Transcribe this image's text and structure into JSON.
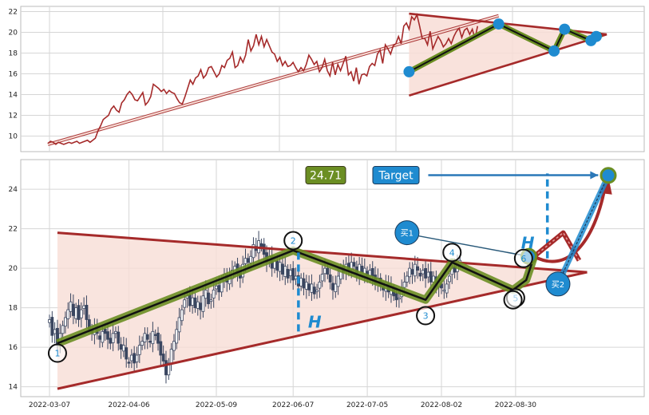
{
  "chart_data": [
    {
      "type": "line",
      "panel": "overview",
      "ylim": [
        8.5,
        22.5
      ],
      "yticks": [
        10,
        12,
        14,
        16,
        18,
        20,
        22
      ],
      "grid": true,
      "colors": {
        "line": "#a52a2a",
        "triangle": "#a52a2a",
        "fill": "#f8ddd6",
        "zigzag_outer": "#6b8e23",
        "zigzag_inner": "#111111",
        "points": "#1f8bd0"
      },
      "series": [
        {
          "values": [
            9.3,
            9.5,
            9.4,
            9.2,
            9.4,
            9.3,
            9.2,
            9.3,
            9.4,
            9.3,
            9.4,
            9.5,
            9.3,
            9.4,
            9.5,
            9.6,
            9.4,
            9.6,
            9.8,
            10.5,
            11.0,
            11.6,
            11.8,
            12.0,
            12.6,
            12.9,
            12.5,
            12.3,
            13.2,
            13.5,
            14.0,
            14.3,
            14.0,
            13.5,
            13.4,
            13.8,
            14.2,
            13.0,
            13.3,
            13.8,
            15.0,
            14.8,
            14.6,
            14.3,
            14.5,
            14.1,
            14.4,
            14.2,
            14.1,
            13.6,
            13.2,
            13.1,
            13.8,
            14.6,
            15.4,
            15.0,
            15.6,
            15.8,
            16.4,
            15.6,
            15.9,
            16.6,
            16.7,
            16.2,
            15.7,
            16.0,
            16.8,
            16.6,
            17.3,
            17.5,
            18.1,
            16.6,
            16.8,
            17.6,
            17.1,
            17.8,
            19.3,
            18.2,
            18.7,
            19.8,
            18.8,
            19.6,
            18.6,
            19.3,
            18.7,
            18.1,
            17.9,
            17.2,
            17.6,
            16.8,
            17.2,
            16.7,
            16.8,
            17.1,
            16.6,
            16.2,
            16.6,
            16.3,
            16.9,
            17.8,
            17.4,
            16.9,
            17.2,
            16.2,
            16.6,
            17.4,
            16.3,
            15.8,
            17.1,
            15.9,
            16.9,
            16.3,
            17.0,
            17.7,
            15.9,
            16.2,
            15.3,
            16.6,
            15.0,
            15.9,
            16.0,
            15.8,
            16.7,
            17.0,
            16.8,
            17.9,
            18.3,
            17.0,
            18.8,
            18.4,
            17.9,
            18.7,
            18.9,
            19.6,
            18.9,
            20.6,
            20.9,
            20.3,
            21.5,
            21.2,
            21.7,
            20.6,
            19.4,
            19.4,
            18.8,
            20.1,
            18.4,
            19.0,
            19.6,
            19.2,
            18.6,
            18.9,
            19.4,
            18.9,
            19.6,
            20.1,
            20.4,
            19.5,
            20.2,
            20.4,
            19.8,
            20.3,
            19.4,
            20.6
          ]
        }
      ],
      "triangle": {
        "upper": [
          [
            137,
            21.8
          ],
          [
            212,
            19.8
          ]
        ],
        "lower": [
          [
            137,
            13.9
          ],
          [
            212,
            19.8
          ]
        ]
      },
      "long_channel": [
        [
          0,
          9.2
        ],
        [
          171,
          21.6
        ]
      ],
      "zigzag": [
        [
          137,
          16.2
        ],
        [
          171,
          20.8
        ],
        [
          192,
          18.2
        ],
        [
          196,
          20.3
        ],
        [
          206,
          19.2
        ],
        [
          208,
          19.6
        ],
        [
          210,
          19.8
        ]
      ],
      "zigzag_tail": [
        [
          192,
          18.2
        ],
        [
          196,
          20.3
        ],
        [
          207,
          19.3
        ],
        [
          211,
          20.6
        ]
      ],
      "points": [
        [
          137,
          16.2
        ],
        [
          171,
          20.8
        ],
        [
          192,
          18.2
        ],
        [
          196,
          20.3
        ],
        [
          206,
          19.2
        ],
        [
          208,
          19.6
        ]
      ]
    },
    {
      "type": "candlestick",
      "panel": "detail",
      "ylim": [
        13.5,
        25.5
      ],
      "yticks": [
        14,
        16,
        18,
        20,
        22,
        24
      ],
      "grid": true,
      "dates": [
        "2022-03-07",
        "2022-04-06",
        "2022-05-09",
        "2022-06-07",
        "2022-07-05",
        "2022-08-02",
        "2022-08-30"
      ],
      "xticks": [
        {
          "label": "2022-03-07",
          "x": 0
        },
        {
          "label": "2022-04-06",
          "x": 30
        },
        {
          "label": "2022-05-09",
          "x": 63
        },
        {
          "label": "2022-06-07",
          "x": 92
        },
        {
          "label": "2022-07-05",
          "x": 120
        },
        {
          "label": "2022-08-02",
          "x": 148
        },
        {
          "label": "2022-08-30",
          "x": 176
        }
      ],
      "xlim": [
        -1,
        211
      ],
      "closes": [
        17.4,
        16.6,
        16.9,
        16.1,
        16.7,
        17.1,
        17.5,
        17.9,
        18.3,
        17.6,
        18.0,
        17.4,
        17.9,
        18.1,
        17.4,
        16.9,
        16.7,
        17.1,
        16.7,
        16.4,
        16.8,
        16.7,
        16.4,
        16.2,
        16.7,
        16.8,
        16.2,
        15.9,
        16.1,
        15.4,
        15.2,
        15.6,
        15.2,
        15.6,
        16.1,
        16.3,
        16.7,
        16.4,
        16.3,
        16.8,
        16.6,
        16.2,
        15.6,
        15.3,
        14.6,
        15.2,
        15.9,
        16.3,
        16.9,
        17.5,
        17.9,
        18.4,
        18.6,
        18.1,
        18.5,
        18.0,
        18.3,
        17.9,
        18.6,
        18.9,
        18.2,
        18.4,
        18.9,
        19.1,
        18.8,
        19.4,
        19.7,
        19.3,
        19.6,
        19.9,
        20.1,
        19.7,
        19.5,
        20.2,
        20.5,
        20.3,
        20.6,
        21.2,
        20.9,
        21.4,
        21.1,
        20.7,
        20.3,
        20.6,
        20.0,
        20.4,
        19.9,
        20.3,
        19.7,
        20.1,
        19.5,
        19.9,
        19.4,
        19.6,
        19.1,
        19.5,
        19.0,
        19.3,
        18.9,
        19.2,
        18.7,
        18.9,
        19.3,
        19.7,
        20.0,
        19.7,
        19.3,
        18.9,
        19.2,
        19.6,
        20.0,
        19.8,
        20.2,
        19.9,
        20.3,
        20.1,
        19.7,
        20.2,
        19.8,
        20.0,
        19.5,
        19.9,
        19.6,
        19.2,
        19.5,
        19.1,
        18.9,
        19.3,
        18.8,
        19.1,
        18.6,
        18.4,
        18.5,
        19.0,
        19.3,
        19.6,
        20.0,
        19.7,
        20.2,
        19.9,
        19.6,
        19.9,
        19.5,
        19.8,
        19.3,
        19.6,
        19.1,
        19.3,
        19.0,
        18.9,
        19.2,
        19.6,
        20.0,
        19.8,
        20.2,
        20.4
      ],
      "triangle": {
        "upper": [
          [
            3,
            21.8
          ],
          [
            203,
            19.8
          ]
        ],
        "lower": [
          [
            3,
            13.9
          ],
          [
            203,
            19.8
          ]
        ]
      },
      "zigzag": [
        [
          3,
          16.2
        ],
        [
          92,
          20.9
        ],
        [
          142,
          18.4
        ],
        [
          152,
          20.3
        ],
        [
          175,
          18.9
        ],
        [
          178,
          19.2
        ],
        [
          180,
          19.4
        ],
        [
          183,
          20.6
        ]
      ],
      "numbered_points": [
        {
          "label": "1",
          "x": 3,
          "y": 15.7
        },
        {
          "label": "2",
          "x": 92,
          "y": 21.4
        },
        {
          "label": "3",
          "x": 142,
          "y": 17.6
        },
        {
          "label": "4",
          "x": 152,
          "y": 20.8
        },
        {
          "label": "5",
          "x": 176,
          "y": 18.5
        },
        {
          "label": "6",
          "x": 179,
          "y": 20.5
        },
        {
          "label": "",
          "x": 175,
          "y": 18.4
        }
      ],
      "h_label": "H",
      "h_left": {
        "x": 94,
        "from": 16.8,
        "to": 20.8
      },
      "h_right": {
        "x": 188,
        "from": 20.5,
        "to": 24.8
      },
      "target_value": "24.71",
      "target_label": "Target",
      "target_point": [
        211,
        24.7
      ],
      "target_arrow": [
        [
          140,
          24.71
        ],
        [
          209,
          24.71
        ]
      ],
      "buy1": {
        "label": "买1",
        "marker": [
          135,
          21.8
        ],
        "to": [
          181,
          20.6
        ]
      },
      "buy2": {
        "label": "买2",
        "marker": [
          192,
          19.2
        ],
        "to": [
          211,
          24.7
        ]
      },
      "projection_up": [
        [
          183,
          20.6
        ],
        [
          194,
          21.8
        ],
        [
          200,
          20.4
        ]
      ],
      "projection_curve": [
        [
          183,
          20.6
        ],
        [
          195,
          19.7
        ],
        [
          206,
          21.2
        ],
        [
          210,
          24.3
        ]
      ]
    }
  ]
}
